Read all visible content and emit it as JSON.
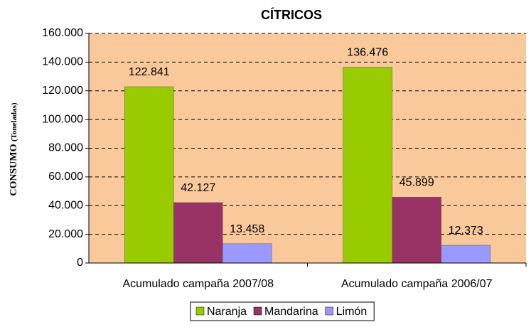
{
  "chart_data": {
    "type": "bar",
    "title": "CÍTRICOS",
    "y_label": "CONSUMO",
    "y_label_unit": "(Toneladas)",
    "categories": [
      "Acumulado campaña 2007/08",
      "Acumulado campaña 2006/07"
    ],
    "series": [
      {
        "name": "Naranja",
        "color": "#99CC00",
        "values": [
          122841,
          136476
        ],
        "value_labels": [
          "122.841",
          "136.476"
        ]
      },
      {
        "name": "Mandarina",
        "color": "#993366",
        "values": [
          42127,
          45899
        ],
        "value_labels": [
          "42.127",
          "45.899"
        ]
      },
      {
        "name": "Limón",
        "color": "#9999FF",
        "values": [
          13458,
          12373
        ],
        "value_labels": [
          "13.458",
          "12.373"
        ]
      }
    ],
    "ylim": [
      0,
      160000
    ],
    "yticks": [
      0,
      {
        "value": 20000,
        "label": "20.000"
      },
      {
        "value": 40000,
        "label": "40.000"
      },
      {
        "value": 60000,
        "label": "60.000"
      },
      {
        "value": 80000,
        "label": "80.000"
      },
      {
        "value": 100000,
        "label": "100.000"
      },
      {
        "value": 120000,
        "label": "120.000"
      },
      {
        "value": 140000,
        "label": "140.000"
      },
      {
        "value": 160000,
        "label": "160.000"
      }
    ],
    "grid": true,
    "legend": "bottom",
    "plot_background": "#F9C99B"
  }
}
